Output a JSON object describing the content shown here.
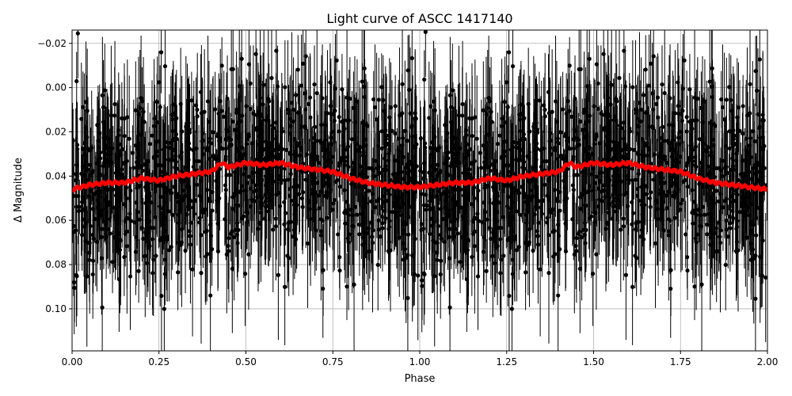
{
  "chart_data": {
    "type": "scatter",
    "title": "Light curve of ASCC 1417140",
    "xlabel": "Phase",
    "ylabel": "Δ Magnitude",
    "xlim": [
      0,
      2
    ],
    "ylim": [
      0.119,
      -0.026
    ],
    "y_inverted": true,
    "grid": true,
    "x_ticks": [
      "0.00",
      "0.25",
      "0.50",
      "0.75",
      "1.00",
      "1.25",
      "1.50",
      "1.75",
      "2.00"
    ],
    "y_ticks": [
      "−0.02",
      "0.00",
      "0.02",
      "0.04",
      "0.06",
      "0.08",
      "0.10"
    ],
    "x_tick_values": [
      0,
      0.25,
      0.5,
      0.75,
      1,
      1.25,
      1.5,
      1.75,
      2
    ],
    "y_tick_values": [
      -0.02,
      0,
      0.02,
      0.04,
      0.06,
      0.08,
      0.1
    ],
    "series": [
      {
        "kind": "points with error bars",
        "color": "#000000"
      },
      {
        "kind": "binned mean line",
        "color": "#ff0000",
        "x": [
          0,
          0.05,
          0.1,
          0.15,
          0.2,
          0.25,
          0.3,
          0.35,
          0.4,
          0.43,
          0.45,
          0.5,
          0.55,
          0.6,
          0.65,
          0.7,
          0.75,
          0.8,
          0.85,
          0.9,
          0.95,
          1.0,
          1.05,
          1.1,
          1.15,
          1.2,
          1.25,
          1.3,
          1.35,
          1.4,
          1.43,
          1.45,
          1.5,
          1.55,
          1.6,
          1.65,
          1.7,
          1.75,
          1.8,
          1.85,
          1.9,
          1.95,
          2.0
        ],
        "y": [
          0.046,
          0.044,
          0.043,
          0.043,
          0.041,
          0.042,
          0.04,
          0.039,
          0.038,
          0.034,
          0.036,
          0.034,
          0.035,
          0.034,
          0.036,
          0.037,
          0.038,
          0.041,
          0.043,
          0.044,
          0.045,
          0.045,
          0.044,
          0.043,
          0.043,
          0.041,
          0.042,
          0.04,
          0.039,
          0.038,
          0.034,
          0.036,
          0.034,
          0.035,
          0.034,
          0.036,
          0.037,
          0.038,
          0.041,
          0.043,
          0.044,
          0.045,
          0.046
        ]
      }
    ]
  }
}
